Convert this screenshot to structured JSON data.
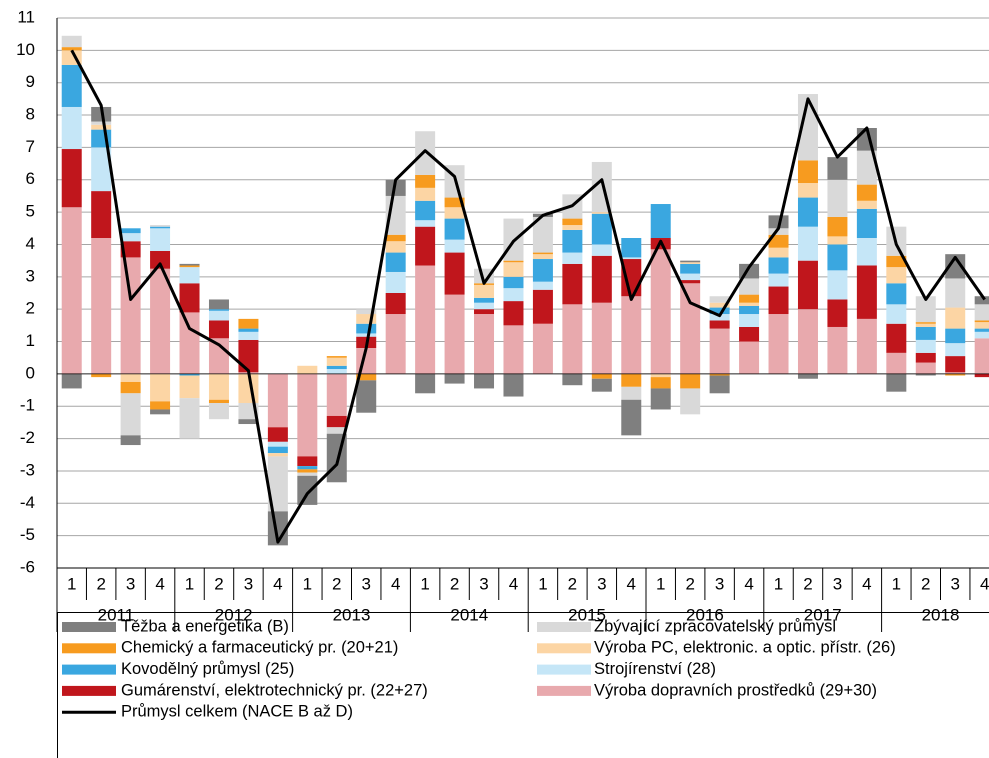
{
  "chart_data": {
    "type": "stacked-bar-line",
    "categories": [
      "1",
      "2",
      "3",
      "4",
      "1",
      "2",
      "3",
      "4",
      "1",
      "2",
      "3",
      "4",
      "1",
      "2",
      "3",
      "4",
      "1",
      "2",
      "3",
      "4",
      "1",
      "2",
      "3",
      "4",
      "1",
      "2",
      "3",
      "4",
      "1",
      "2",
      "3",
      "4"
    ],
    "years": [
      "2011",
      "2012",
      "2013",
      "2014",
      "2015",
      "2016",
      "2017",
      "2018"
    ],
    "ylim": [
      -6,
      11
    ],
    "yticks": [
      -6,
      -5,
      -4,
      -3,
      -2,
      -1,
      0,
      1,
      2,
      3,
      4,
      5,
      6,
      7,
      8,
      9,
      10,
      11
    ],
    "grid": true,
    "series": [
      {
        "name": "Těžba a energetika (B)",
        "color": "#7f7f7f",
        "values": [
          -0.45,
          0.45,
          -0.3,
          -0.15,
          0.05,
          0.3,
          -0.15,
          -1.05,
          -0.9,
          -1.5,
          -1.0,
          0.5,
          -0.6,
          -0.3,
          -0.45,
          -0.7,
          0.1,
          -0.35,
          -0.4,
          -1.1,
          -0.65,
          0.05,
          -0.55,
          0.45,
          0.4,
          -0.15,
          0.7,
          0.7,
          -0.55,
          -0.05,
          0.75,
          0.25
        ]
      },
      {
        "name": "Zbývající zpracovatelský průmysl",
        "color": "#d9d9d9",
        "values": [
          0.35,
          0.1,
          -1.3,
          0.05,
          -1.25,
          -0.5,
          -0.5,
          -1.7,
          -0.1,
          -0.2,
          0.15,
          1.2,
          1.35,
          1.0,
          0.45,
          1.3,
          1.1,
          0.75,
          1.55,
          -0.4,
          0,
          -0.8,
          0.2,
          0.5,
          0.2,
          2.05,
          1.15,
          1.05,
          0.9,
          0.8,
          0.9,
          0.5
        ]
      },
      {
        "name": "Chemický a farmaceutický pr. (20+21)",
        "color": "#f79b1f",
        "values": [
          0.1,
          -0.1,
          -0.35,
          -0.25,
          0.05,
          -0.1,
          0.3,
          0,
          -0.1,
          0.05,
          -0.2,
          0.2,
          0.4,
          0.3,
          0.05,
          0.05,
          0.05,
          0.2,
          -0.15,
          -0.4,
          -0.35,
          -0.45,
          -0.05,
          0.25,
          0.4,
          0.7,
          0.6,
          0.5,
          0.35,
          0.05,
          -0.05,
          0.05
        ]
      },
      {
        "name": "Výroba PC, elektronic. a optic. přístr. (26)",
        "color": "#fcd5a4",
        "values": [
          0.45,
          0.15,
          -0.25,
          -0.85,
          -0.7,
          -0.8,
          -0.9,
          -0.1,
          0.25,
          0.25,
          0.3,
          0.35,
          0.4,
          0.35,
          0.4,
          0.45,
          0.15,
          0.15,
          0.05,
          0,
          -0.1,
          0.05,
          0.15,
          0.1,
          0.3,
          0.45,
          0.25,
          0.25,
          0.5,
          0.1,
          0.65,
          0.2
        ]
      },
      {
        "name": "Kovodělný průmysl (25)",
        "color": "#3aa7e0",
        "values": [
          1.3,
          0.55,
          0.15,
          0.05,
          -0.05,
          0.05,
          0.1,
          -0.2,
          -0.1,
          0.1,
          0.3,
          0.6,
          0.6,
          0.65,
          0.15,
          0.35,
          0.7,
          0.7,
          0.95,
          0.6,
          1.05,
          0.3,
          0.2,
          0.25,
          0.5,
          0.9,
          0.8,
          0.9,
          0.65,
          0.4,
          0.45,
          0.1
        ]
      },
      {
        "name": "Strojírenství (28)",
        "color": "#c5e6f7",
        "values": [
          1.3,
          1.35,
          0.25,
          0.7,
          0.5,
          0.3,
          0.25,
          -0.15,
          0,
          0.15,
          0.1,
          0.65,
          0.2,
          0.4,
          0.2,
          0.4,
          0.25,
          0.35,
          0.35,
          0.05,
          0,
          0.2,
          0.2,
          0.4,
          0.4,
          1.05,
          0.9,
          0.85,
          0.6,
          0.4,
          0.4,
          0.2
        ]
      },
      {
        "name": "Gumárenství, elektrotechnický pr. (22+27)",
        "color": "#c0161c",
        "values": [
          1.8,
          1.45,
          0.5,
          0.55,
          0.9,
          0.55,
          1.0,
          -0.45,
          -0.3,
          -0.35,
          0.35,
          0.65,
          1.2,
          1.3,
          0.15,
          0.75,
          1.05,
          1.25,
          1.45,
          1.15,
          0.35,
          0.1,
          0.25,
          0.45,
          0.85,
          1.5,
          0.85,
          1.65,
          0.9,
          0.3,
          0.5,
          -0.1
        ]
      },
      {
        "name": "Výroba dopravních prostředků (29+30)",
        "color": "#e8a9ad",
        "values": [
          5.15,
          4.2,
          3.6,
          3.25,
          1.9,
          1.1,
          0.05,
          -1.65,
          -2.55,
          -1.3,
          0.8,
          1.85,
          3.35,
          2.45,
          1.85,
          1.5,
          1.55,
          2.15,
          2.2,
          2.4,
          3.85,
          2.8,
          1.4,
          1.0,
          1.85,
          2.0,
          1.45,
          1.7,
          0.65,
          0.35,
          0.05,
          1.1
        ]
      }
    ],
    "line": {
      "name": "Průmysl celkem (NACE B až D)",
      "color": "#000000",
      "values": [
        10.0,
        8.3,
        2.3,
        3.4,
        1.4,
        0.9,
        0.1,
        -5.2,
        -3.7,
        -2.8,
        0.8,
        6.0,
        6.9,
        6.1,
        2.8,
        4.1,
        4.9,
        5.2,
        6.0,
        2.3,
        4.1,
        2.2,
        1.8,
        3.3,
        4.5,
        8.5,
        6.7,
        7.6,
        4.0,
        2.3,
        3.6,
        2.3
      ]
    }
  }
}
